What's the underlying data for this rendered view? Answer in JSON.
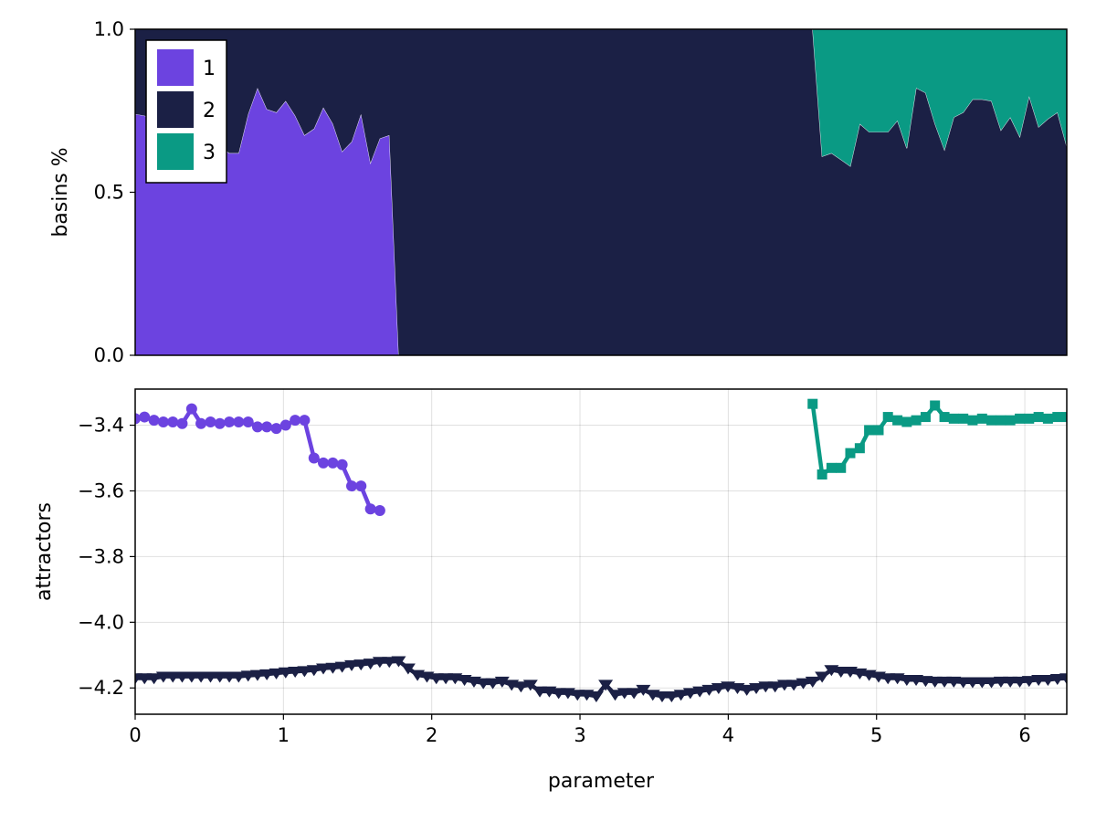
{
  "colors": {
    "c1": "#6c43e0",
    "c2": "#1b2045",
    "c3": "#0a9a84"
  },
  "chart_data": [
    {
      "type": "area",
      "title": "",
      "xlabel": "",
      "ylabel": "basins %",
      "xlim": [
        0,
        6.283
      ],
      "ylim": [
        0,
        1
      ],
      "y_ticks": [
        0.0,
        0.5,
        1.0
      ],
      "y_tick_labels": [
        "0.0",
        "0.5",
        "1.0"
      ],
      "stacked": true,
      "grid": false,
      "legend": {
        "placement": "top-left",
        "entries": [
          "1",
          "2",
          "3"
        ]
      },
      "x": [
        0,
        0.063,
        0.127,
        0.19,
        0.254,
        0.317,
        0.381,
        0.444,
        0.508,
        0.571,
        0.635,
        0.698,
        0.762,
        0.825,
        0.888,
        0.952,
        1.015,
        1.079,
        1.142,
        1.206,
        1.269,
        1.333,
        1.396,
        1.46,
        1.523,
        1.587,
        1.65,
        1.714,
        1.777,
        1.841,
        1.904,
        1.968,
        2.031,
        2.095,
        2.158,
        2.221,
        2.285,
        2.348,
        2.412,
        2.475,
        2.539,
        2.602,
        2.666,
        2.729,
        2.793,
        2.856,
        2.919,
        2.983,
        3.046,
        3.11,
        3.173,
        3.237,
        3.3,
        3.364,
        3.427,
        3.491,
        3.554,
        3.618,
        3.681,
        3.744,
        3.808,
        3.871,
        3.935,
        3.998,
        4.062,
        4.125,
        4.189,
        4.252,
        4.316,
        4.379,
        4.442,
        4.506,
        4.569,
        4.633,
        4.696,
        4.76,
        4.823,
        4.887,
        4.95,
        5.014,
        5.077,
        5.141,
        5.204,
        5.267,
        5.331,
        5.394,
        5.458,
        5.521,
        5.585,
        5.648,
        5.712,
        5.775,
        5.839,
        5.902,
        5.966,
        6.029,
        6.093,
        6.156,
        6.22,
        6.283
      ],
      "series": [
        {
          "name": "1",
          "values": [
            0.74,
            0.735,
            0.72,
            0.66,
            0.64,
            0.6,
            0.55,
            0.61,
            0.62,
            0.64,
            0.62,
            0.62,
            0.74,
            0.82,
            0.755,
            0.745,
            0.78,
            0.735,
            0.675,
            0.695,
            0.76,
            0.71,
            0.625,
            0.655,
            0.74,
            0.59,
            0.665,
            0.675,
            0.0,
            0.0,
            0.0,
            0.0,
            0.0,
            0.0,
            0.0,
            0.0,
            0.0,
            0.0,
            0.0,
            0.0,
            0.0,
            0.0,
            0.0,
            0.0,
            0.0,
            0.0,
            0.0,
            0.0,
            0.0,
            0.0,
            0.0,
            0.0,
            0.0,
            0.0,
            0.0,
            0.0,
            0.0,
            0.0,
            0.0,
            0.0,
            0.0,
            0.0,
            0.0,
            0.0,
            0.0,
            0.0,
            0.0,
            0.0,
            0.0,
            0.0,
            0.0,
            0.0,
            0.0,
            0.0,
            0.0,
            0.0,
            0.0,
            0.0,
            0.0,
            0.0,
            0.0,
            0.0,
            0.0,
            0.0,
            0.0,
            0.0,
            0.0,
            0.0,
            0.0,
            0.0,
            0.0,
            0.0,
            0.0,
            0.0,
            0.0,
            0.0,
            0.0,
            0.0,
            0.0,
            0.0
          ]
        },
        {
          "name": "2",
          "values": [
            0.26,
            0.265,
            0.28,
            0.34,
            0.36,
            0.4,
            0.45,
            0.39,
            0.38,
            0.36,
            0.38,
            0.38,
            0.26,
            0.18,
            0.245,
            0.255,
            0.22,
            0.265,
            0.325,
            0.305,
            0.24,
            0.29,
            0.375,
            0.345,
            0.26,
            0.41,
            0.335,
            0.325,
            1.0,
            1.0,
            1.0,
            1.0,
            1.0,
            1.0,
            1.0,
            1.0,
            1.0,
            1.0,
            1.0,
            1.0,
            1.0,
            1.0,
            1.0,
            1.0,
            1.0,
            1.0,
            1.0,
            1.0,
            1.0,
            1.0,
            1.0,
            1.0,
            1.0,
            1.0,
            1.0,
            1.0,
            1.0,
            1.0,
            1.0,
            1.0,
            1.0,
            1.0,
            1.0,
            1.0,
            1.0,
            1.0,
            1.0,
            1.0,
            1.0,
            1.0,
            1.0,
            1.0,
            1.0,
            0.61,
            0.62,
            0.6,
            0.58,
            0.71,
            0.685,
            0.685,
            0.685,
            0.72,
            0.635,
            0.82,
            0.805,
            0.71,
            0.63,
            0.73,
            0.745,
            0.785,
            0.785,
            0.78,
            0.69,
            0.73,
            0.67,
            0.795,
            0.7,
            0.725,
            0.745,
            0.64
          ]
        },
        {
          "name": "3",
          "values": [
            0.0,
            0.0,
            0.0,
            0.0,
            0.0,
            0.0,
            0.0,
            0.0,
            0.0,
            0.0,
            0.0,
            0.0,
            0.0,
            0.0,
            0.0,
            0.0,
            0.0,
            0.0,
            0.0,
            0.0,
            0.0,
            0.0,
            0.0,
            0.0,
            0.0,
            0.0,
            0.0,
            0.0,
            0.0,
            0.0,
            0.0,
            0.0,
            0.0,
            0.0,
            0.0,
            0.0,
            0.0,
            0.0,
            0.0,
            0.0,
            0.0,
            0.0,
            0.0,
            0.0,
            0.0,
            0.0,
            0.0,
            0.0,
            0.0,
            0.0,
            0.0,
            0.0,
            0.0,
            0.0,
            0.0,
            0.0,
            0.0,
            0.0,
            0.0,
            0.0,
            0.0,
            0.0,
            0.0,
            0.0,
            0.0,
            0.0,
            0.0,
            0.0,
            0.0,
            0.0,
            0.0,
            0.0,
            0.0,
            0.39,
            0.38,
            0.4,
            0.42,
            0.29,
            0.315,
            0.315,
            0.315,
            0.28,
            0.365,
            0.18,
            0.195,
            0.29,
            0.37,
            0.27,
            0.255,
            0.215,
            0.215,
            0.22,
            0.31,
            0.27,
            0.33,
            0.205,
            0.3,
            0.275,
            0.255,
            0.36
          ]
        }
      ]
    },
    {
      "type": "scatter",
      "title": "",
      "xlabel": "parameter",
      "ylabel": "attractors",
      "xlim": [
        0,
        6.283
      ],
      "ylim": [
        -4.28,
        -3.29
      ],
      "x_ticks": [
        0,
        1,
        2,
        3,
        4,
        5,
        6
      ],
      "x_tick_labels": [
        "0",
        "1",
        "2",
        "3",
        "4",
        "5",
        "6"
      ],
      "y_ticks": [
        -3.4,
        -3.6,
        -3.8,
        -4.0,
        -4.2
      ],
      "y_tick_labels": [
        "−3.4",
        "−3.6",
        "−3.8",
        "−4.0",
        "−4.2"
      ],
      "grid": true,
      "series": [
        {
          "name": "1",
          "marker": "circle",
          "x": [
            0,
            0.063,
            0.127,
            0.19,
            0.254,
            0.317,
            0.381,
            0.444,
            0.508,
            0.571,
            0.635,
            0.698,
            0.762,
            0.825,
            0.888,
            0.952,
            1.015,
            1.079,
            1.142,
            1.206,
            1.269,
            1.333,
            1.396,
            1.46,
            1.523,
            1.587,
            1.65
          ],
          "y": [
            -3.38,
            -3.375,
            -3.385,
            -3.39,
            -3.39,
            -3.395,
            -3.35,
            -3.395,
            -3.39,
            -3.395,
            -3.39,
            -3.39,
            -3.39,
            -3.405,
            -3.405,
            -3.41,
            -3.4,
            -3.385,
            -3.385,
            -3.5,
            -3.515,
            -3.515,
            -3.52,
            -3.585,
            -3.585,
            -3.655,
            -3.66
          ]
        },
        {
          "name": "2",
          "marker": "triangle-down",
          "x": [
            0,
            0.063,
            0.127,
            0.19,
            0.254,
            0.317,
            0.381,
            0.444,
            0.508,
            0.571,
            0.635,
            0.698,
            0.762,
            0.825,
            0.888,
            0.952,
            1.015,
            1.079,
            1.142,
            1.206,
            1.269,
            1.333,
            1.396,
            1.46,
            1.523,
            1.587,
            1.65,
            1.714,
            1.777,
            1.841,
            1.904,
            1.968,
            2.031,
            2.095,
            2.158,
            2.221,
            2.285,
            2.348,
            2.412,
            2.475,
            2.539,
            2.602,
            2.666,
            2.729,
            2.793,
            2.856,
            2.919,
            2.983,
            3.046,
            3.11,
            3.173,
            3.237,
            3.3,
            3.364,
            3.427,
            3.491,
            3.554,
            3.618,
            3.681,
            3.744,
            3.808,
            3.871,
            3.935,
            3.998,
            4.062,
            4.125,
            4.189,
            4.252,
            4.316,
            4.379,
            4.442,
            4.506,
            4.569,
            4.633,
            4.696,
            4.76,
            4.823,
            4.887,
            4.95,
            5.014,
            5.077,
            5.141,
            5.204,
            5.267,
            5.331,
            5.394,
            5.458,
            5.521,
            5.585,
            5.648,
            5.712,
            5.775,
            5.839,
            5.902,
            5.966,
            6.029,
            6.093,
            6.156,
            6.22,
            6.283
          ],
          "y": [
            -4.17,
            -4.17,
            -4.17,
            -4.165,
            -4.165,
            -4.165,
            -4.165,
            -4.165,
            -4.165,
            -4.165,
            -4.165,
            -4.165,
            -4.162,
            -4.16,
            -4.158,
            -4.155,
            -4.152,
            -4.15,
            -4.148,
            -4.145,
            -4.14,
            -4.138,
            -4.135,
            -4.13,
            -4.128,
            -4.125,
            -4.12,
            -4.12,
            -4.118,
            -4.14,
            -4.16,
            -4.165,
            -4.17,
            -4.17,
            -4.17,
            -4.175,
            -4.18,
            -4.185,
            -4.185,
            -4.18,
            -4.19,
            -4.195,
            -4.19,
            -4.21,
            -4.21,
            -4.215,
            -4.215,
            -4.22,
            -4.22,
            -4.225,
            -4.19,
            -4.22,
            -4.215,
            -4.215,
            -4.205,
            -4.22,
            -4.225,
            -4.225,
            -4.22,
            -4.215,
            -4.21,
            -4.205,
            -4.2,
            -4.195,
            -4.2,
            -4.205,
            -4.2,
            -4.195,
            -4.195,
            -4.19,
            -4.19,
            -4.185,
            -4.18,
            -4.165,
            -4.145,
            -4.15,
            -4.15,
            -4.155,
            -4.16,
            -4.165,
            -4.17,
            -4.17,
            -4.175,
            -4.175,
            -4.178,
            -4.18,
            -4.18,
            -4.18,
            -4.182,
            -4.182,
            -4.182,
            -4.182,
            -4.18,
            -4.18,
            -4.18,
            -4.178,
            -4.175,
            -4.175,
            -4.172,
            -4.17
          ]
        },
        {
          "name": "3",
          "marker": "square",
          "x": [
            4.569,
            4.633,
            4.696,
            4.76,
            4.823,
            4.887,
            4.95,
            5.014,
            5.077,
            5.141,
            5.204,
            5.267,
            5.331,
            5.394,
            5.458,
            5.521,
            5.585,
            5.648,
            5.712,
            5.775,
            5.839,
            5.902,
            5.966,
            6.029,
            6.093,
            6.156,
            6.22,
            6.283
          ],
          "y": [
            -3.335,
            -3.55,
            -3.53,
            -3.53,
            -3.485,
            -3.47,
            -3.415,
            -3.415,
            -3.375,
            -3.385,
            -3.39,
            -3.385,
            -3.375,
            -3.34,
            -3.375,
            -3.38,
            -3.38,
            -3.385,
            -3.38,
            -3.385,
            -3.385,
            -3.385,
            -3.38,
            -3.38,
            -3.375,
            -3.38,
            -3.375,
            -3.375
          ]
        }
      ]
    }
  ]
}
